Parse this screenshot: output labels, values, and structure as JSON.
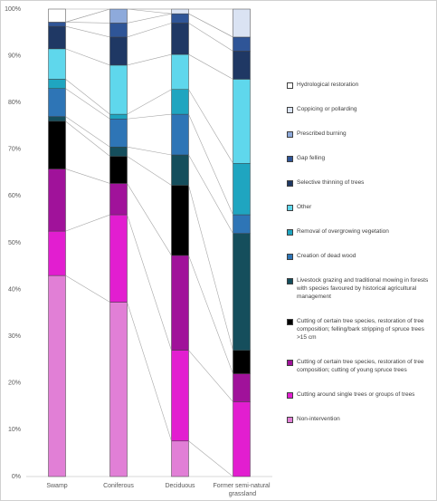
{
  "chart_data": {
    "type": "stacked_bar",
    "categories": [
      "Swamp",
      "Coniferous",
      "Deciduous",
      "Former semi-natural grassland"
    ],
    "ylim": [
      0,
      100
    ],
    "yticks": [
      {
        "value": 0,
        "label": "0%"
      },
      {
        "value": 10,
        "label": "10%"
      },
      {
        "value": 20,
        "label": "20%"
      },
      {
        "value": 30,
        "label": "30%"
      },
      {
        "value": 40,
        "label": "40%"
      },
      {
        "value": 50,
        "label": "50%"
      },
      {
        "value": 60,
        "label": "60%"
      },
      {
        "value": 70,
        "label": "70%"
      },
      {
        "value": 80,
        "label": "80%"
      },
      {
        "value": 90,
        "label": "90%"
      },
      {
        "value": 100,
        "label": "100%"
      }
    ],
    "series": [
      {
        "name": "Non-intervention",
        "color": "#e17fd6",
        "values": [
          43,
          37.3,
          7.6,
          0
        ]
      },
      {
        "name": "Cutting around single trees or groups of trees",
        "color": "#e21ed0",
        "values": [
          9.5,
          18.7,
          19.4,
          16
        ]
      },
      {
        "name": "Cutting of certain tree species, restoration of tree composition; cutting of young spruce trees",
        "color": "#a0129a",
        "values": [
          13.3,
          6.7,
          20.3,
          6
        ]
      },
      {
        "name": "Cutting of certain tree species, restoration of tree composition; felling/bark stripping of spruce trees >15 cm",
        "color": "#000000",
        "values": [
          10.2,
          5.8,
          15,
          5
        ]
      },
      {
        "name": "Livestock grazing and traditional mowing in forests with species favoured by historical agricultural management",
        "color": "#154e5c",
        "values": [
          1,
          2,
          6.5,
          25
        ]
      },
      {
        "name": "Creation of dead wood",
        "color": "#2e75b6",
        "values": [
          6,
          6,
          8.7,
          4
        ]
      },
      {
        "name": "Removal of overgrowing vegetation",
        "color": "#1fa5c0",
        "values": [
          2,
          1,
          5.3,
          11
        ]
      },
      {
        "name": "Other",
        "color": "#5fd7ec",
        "values": [
          6.5,
          10.5,
          7.5,
          18
        ]
      },
      {
        "name": "Selective thinning of trees",
        "color": "#1f3864",
        "values": [
          4.8,
          6,
          6.7,
          6
        ]
      },
      {
        "name": "Gap felling",
        "color": "#2f5597",
        "values": [
          0.9,
          3,
          2,
          3
        ]
      },
      {
        "name": "Prescribed burning",
        "color": "#8eaadb",
        "values": [
          0,
          3,
          0,
          0
        ]
      },
      {
        "name": "Coppicing or pollarding",
        "color": "#dae3f3",
        "values": [
          0,
          0,
          1,
          6
        ]
      },
      {
        "name": "Hydrological restoration",
        "color": "#ffffff",
        "values": [
          2.8,
          0,
          0,
          0
        ]
      }
    ]
  }
}
